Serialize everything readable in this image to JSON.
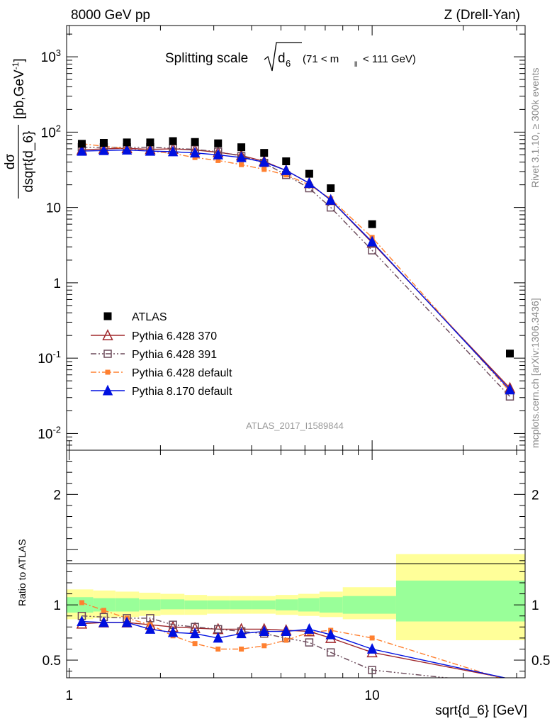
{
  "header": {
    "left": "8000 GeV pp",
    "right": "Z (Drell-Yan)"
  },
  "title": {
    "prefix": "Splitting scale",
    "var": "d",
    "var_sub": "6",
    "range_open": "(71 < m",
    "range_sub": "ll",
    "range_close": "< 111 GeV)"
  },
  "side_labels": {
    "rivet": "Rivet 3.1.10, ≥ 300k events",
    "mcplots": "mcplots.cern.ch [arXiv:1306.3436]"
  },
  "analysis_id": "ATLAS_2017_I1589844",
  "ylabel_main": {
    "num": "dσ",
    "den": "dsqrt{d_6}",
    "units": "[pb,GeV",
    "units_exp": "-1",
    "units_close": "]"
  },
  "ylabel_ratio": "Ratio to ATLAS",
  "xlabel": "sqrt{d_6} [GeV]",
  "legend": [
    "ATLAS",
    "Pythia 6.428 370",
    "Pythia 6.428 391",
    "Pythia 6.428 default",
    "Pythia 8.170 default"
  ],
  "colors": {
    "atlas": "#000000",
    "p370": "#a0282c",
    "p391": "#6b4a5a",
    "pdef": "#ff8030",
    "p8": "#0010e0",
    "band_inner": "#99ff99",
    "band_outer": "#ffff99"
  },
  "chart_data": {
    "type": "line",
    "x_scale": "log",
    "y_scale_main": "log",
    "xlim": [
      0.98,
      32
    ],
    "ylim_main": [
      0.006,
      2600
    ],
    "ylim_ratio": [
      0.34,
      2.4
    ],
    "x_ticks": [
      "1",
      "10"
    ],
    "y_ticks_main": [
      "10^-2",
      "10^-1",
      "1",
      "10",
      "10^2",
      "10^3"
    ],
    "y_ticks_ratio": [
      "0.5",
      "1",
      "2"
    ],
    "x": [
      1.1,
      1.3,
      1.55,
      1.85,
      2.2,
      2.6,
      3.1,
      3.7,
      4.4,
      5.2,
      6.2,
      7.3,
      10.0,
      28.5
    ],
    "series": [
      {
        "name": "ATLAS",
        "values": [
          70,
          72,
          73,
          73,
          76,
          74,
          71,
          63,
          53,
          41,
          28,
          18,
          6.0,
          0.115
        ],
        "ratio": [
          1,
          1,
          1,
          1,
          1,
          1,
          1,
          1,
          1,
          1,
          1,
          1,
          1,
          1
        ]
      },
      {
        "name": "Pythia 6.428 370",
        "values": [
          58,
          60,
          61,
          59,
          60,
          58,
          54,
          49,
          41,
          31,
          21,
          12.5,
          3.4,
          0.04
        ],
        "ratio": [
          0.83,
          0.84,
          0.84,
          0.82,
          0.8,
          0.79,
          0.78,
          0.78,
          0.78,
          0.77,
          0.76,
          0.7,
          0.57,
          0.33
        ]
      },
      {
        "name": "Pythia 6.428 391",
        "values": [
          63,
          63,
          63,
          63,
          61,
          59,
          55,
          48,
          39,
          27,
          18,
          10,
          2.7,
          0.031
        ],
        "ratio": [
          0.9,
          0.89,
          0.88,
          0.88,
          0.82,
          0.8,
          0.78,
          0.76,
          0.74,
          0.7,
          0.66,
          0.57,
          0.41,
          0.28
        ]
      },
      {
        "name": "Pythia 6.428 default",
        "values": [
          70,
          65,
          60,
          56,
          52,
          46,
          42,
          37,
          32,
          27,
          20,
          13,
          4.0,
          0.036
        ],
        "ratio": [
          1.02,
          0.95,
          0.88,
          0.82,
          0.72,
          0.65,
          0.6,
          0.6,
          0.63,
          0.68,
          0.75,
          0.77,
          0.7,
          0.31
        ]
      },
      {
        "name": "Pythia 8.170 default",
        "values": [
          56,
          57,
          58,
          56,
          55,
          53,
          50,
          46,
          40,
          31,
          21,
          12.5,
          3.5,
          0.038
        ],
        "ratio": [
          0.85,
          0.84,
          0.84,
          0.78,
          0.75,
          0.74,
          0.7,
          0.74,
          0.76,
          0.76,
          0.78,
          0.73,
          0.6,
          0.33
        ]
      }
    ],
    "ratio_band": {
      "x_edges": [
        0.98,
        1.2,
        1.42,
        1.7,
        2.0,
        2.4,
        2.85,
        3.4,
        4.0,
        4.8,
        5.7,
        6.7,
        8.0,
        12.0,
        32.0
      ],
      "inner_lo": [
        0.93,
        0.94,
        0.94,
        0.95,
        0.96,
        0.96,
        0.96,
        0.96,
        0.96,
        0.95,
        0.94,
        0.93,
        0.92,
        0.85
      ],
      "inner_hi": [
        1.07,
        1.06,
        1.06,
        1.05,
        1.05,
        1.04,
        1.04,
        1.04,
        1.04,
        1.05,
        1.06,
        1.07,
        1.08,
        1.22
      ],
      "outer_lo": [
        0.87,
        0.88,
        0.89,
        0.9,
        0.91,
        0.91,
        0.92,
        0.92,
        0.92,
        0.91,
        0.9,
        0.89,
        0.87,
        0.68
      ],
      "outer_hi": [
        1.14,
        1.13,
        1.12,
        1.11,
        1.1,
        1.09,
        1.08,
        1.08,
        1.08,
        1.09,
        1.1,
        1.12,
        1.16,
        1.46
      ]
    }
  }
}
